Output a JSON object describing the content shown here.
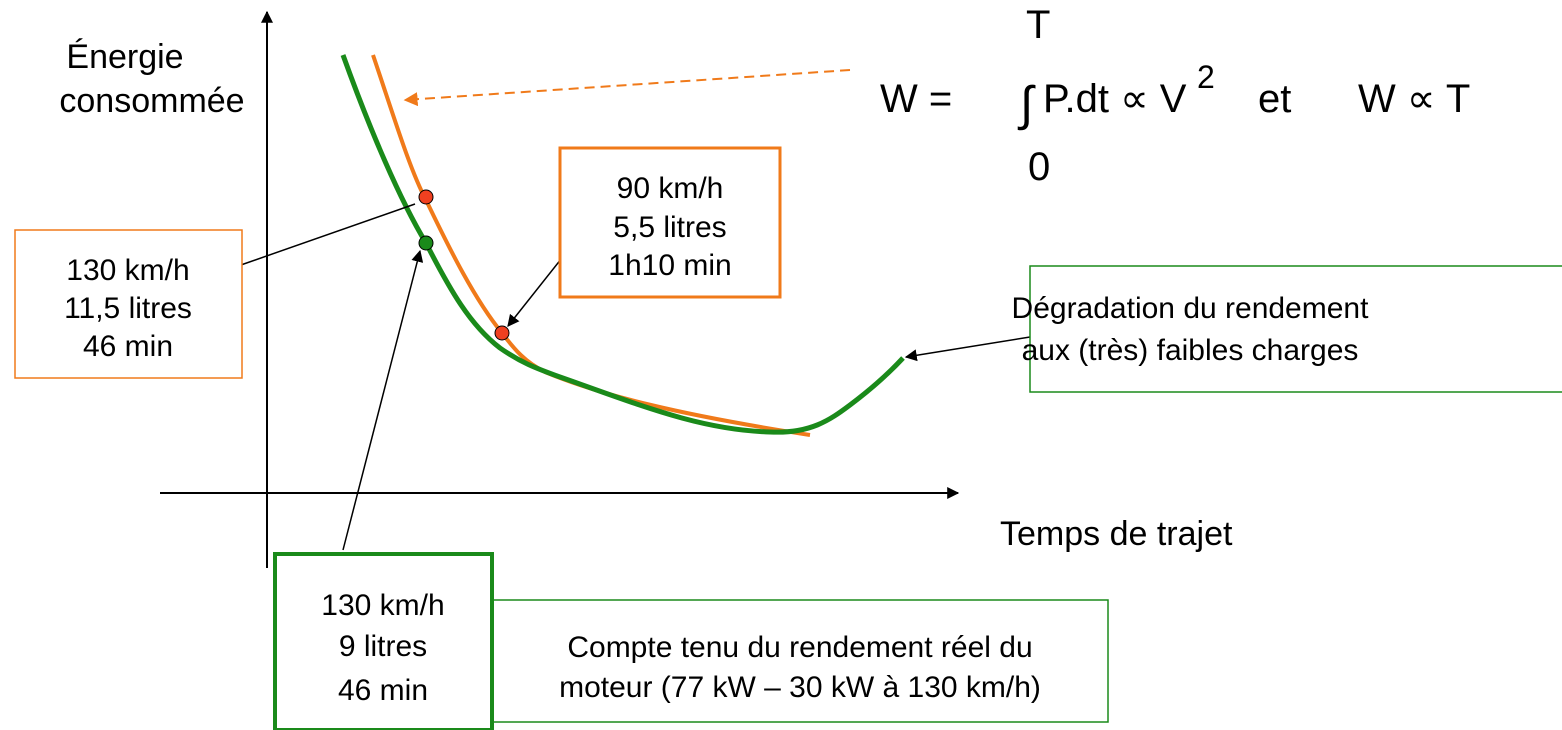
{
  "y_axis_label": [
    "Énergie",
    "consommée"
  ],
  "x_axis_label": "Temps de trajet",
  "formula": {
    "lhs": "W =",
    "integral": "∫",
    "upper": "T",
    "lower": "0",
    "body": "P.dt ∝ V",
    "exponent": "2",
    "connector": "et",
    "rhs": "W ∝ T"
  },
  "boxes": {
    "theoretical_130": [
      "130 km/h",
      "11,5 litres",
      "46 min"
    ],
    "theoretical_90": [
      "90 km/h",
      "5,5 litres",
      "1h10 min"
    ],
    "real_130": [
      "130 km/h",
      "9 litres",
      "46 min"
    ],
    "real_note": [
      "Compte tenu du rendement réel du",
      "moteur (77 kW – 30 kW à 130 km/h)"
    ],
    "low_load_note": [
      "Dégradation du rendement",
      "aux (très) faibles charges"
    ]
  }
}
